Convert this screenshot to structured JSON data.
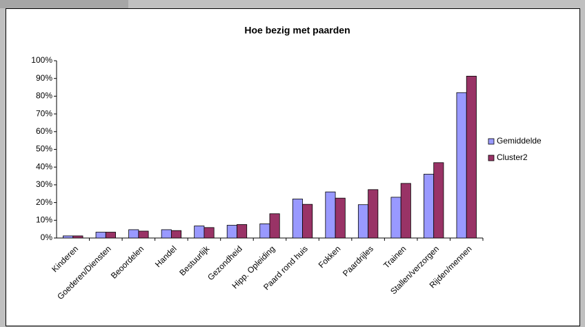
{
  "chart_data": {
    "type": "bar",
    "title": "Hoe bezig met paarden",
    "categories": [
      "Kinderen",
      "Goederen/Diensten",
      "Beoordelen",
      "Handel",
      "Bestuurlijk",
      "Gezondheid",
      "Hipp. Opleiding",
      "Paard rond huis",
      "Fokken",
      "Paardrijles",
      "Trainen",
      "Stallen/verzorgen",
      "Rijden/mennen"
    ],
    "series": [
      {
        "name": "Gemiddelde",
        "color": "#9999ff",
        "values": [
          1.2,
          3.3,
          4.7,
          4.7,
          6.8,
          7.2,
          8,
          22,
          26,
          18.8,
          23,
          36,
          82
        ]
      },
      {
        "name": "Cluster2",
        "color": "#993366",
        "values": [
          1.2,
          3.3,
          3.9,
          4.2,
          5.9,
          7.6,
          13.7,
          19,
          22.5,
          27.3,
          30.8,
          42.5,
          91.3
        ]
      }
    ],
    "ylim": [
      0,
      100
    ],
    "yticks": [
      {
        "value": 0,
        "label": "0%"
      },
      {
        "value": 10,
        "label": "10%"
      },
      {
        "value": 20,
        "label": "20%"
      },
      {
        "value": 30,
        "label": "30%"
      },
      {
        "value": 40,
        "label": "40%"
      },
      {
        "value": 50,
        "label": "50%"
      },
      {
        "value": 60,
        "label": "60%"
      },
      {
        "value": 70,
        "label": "70%"
      },
      {
        "value": 80,
        "label": "80%"
      },
      {
        "value": 90,
        "label": "90%"
      },
      {
        "value": 100,
        "label": "100%"
      }
    ],
    "legend": "right"
  }
}
